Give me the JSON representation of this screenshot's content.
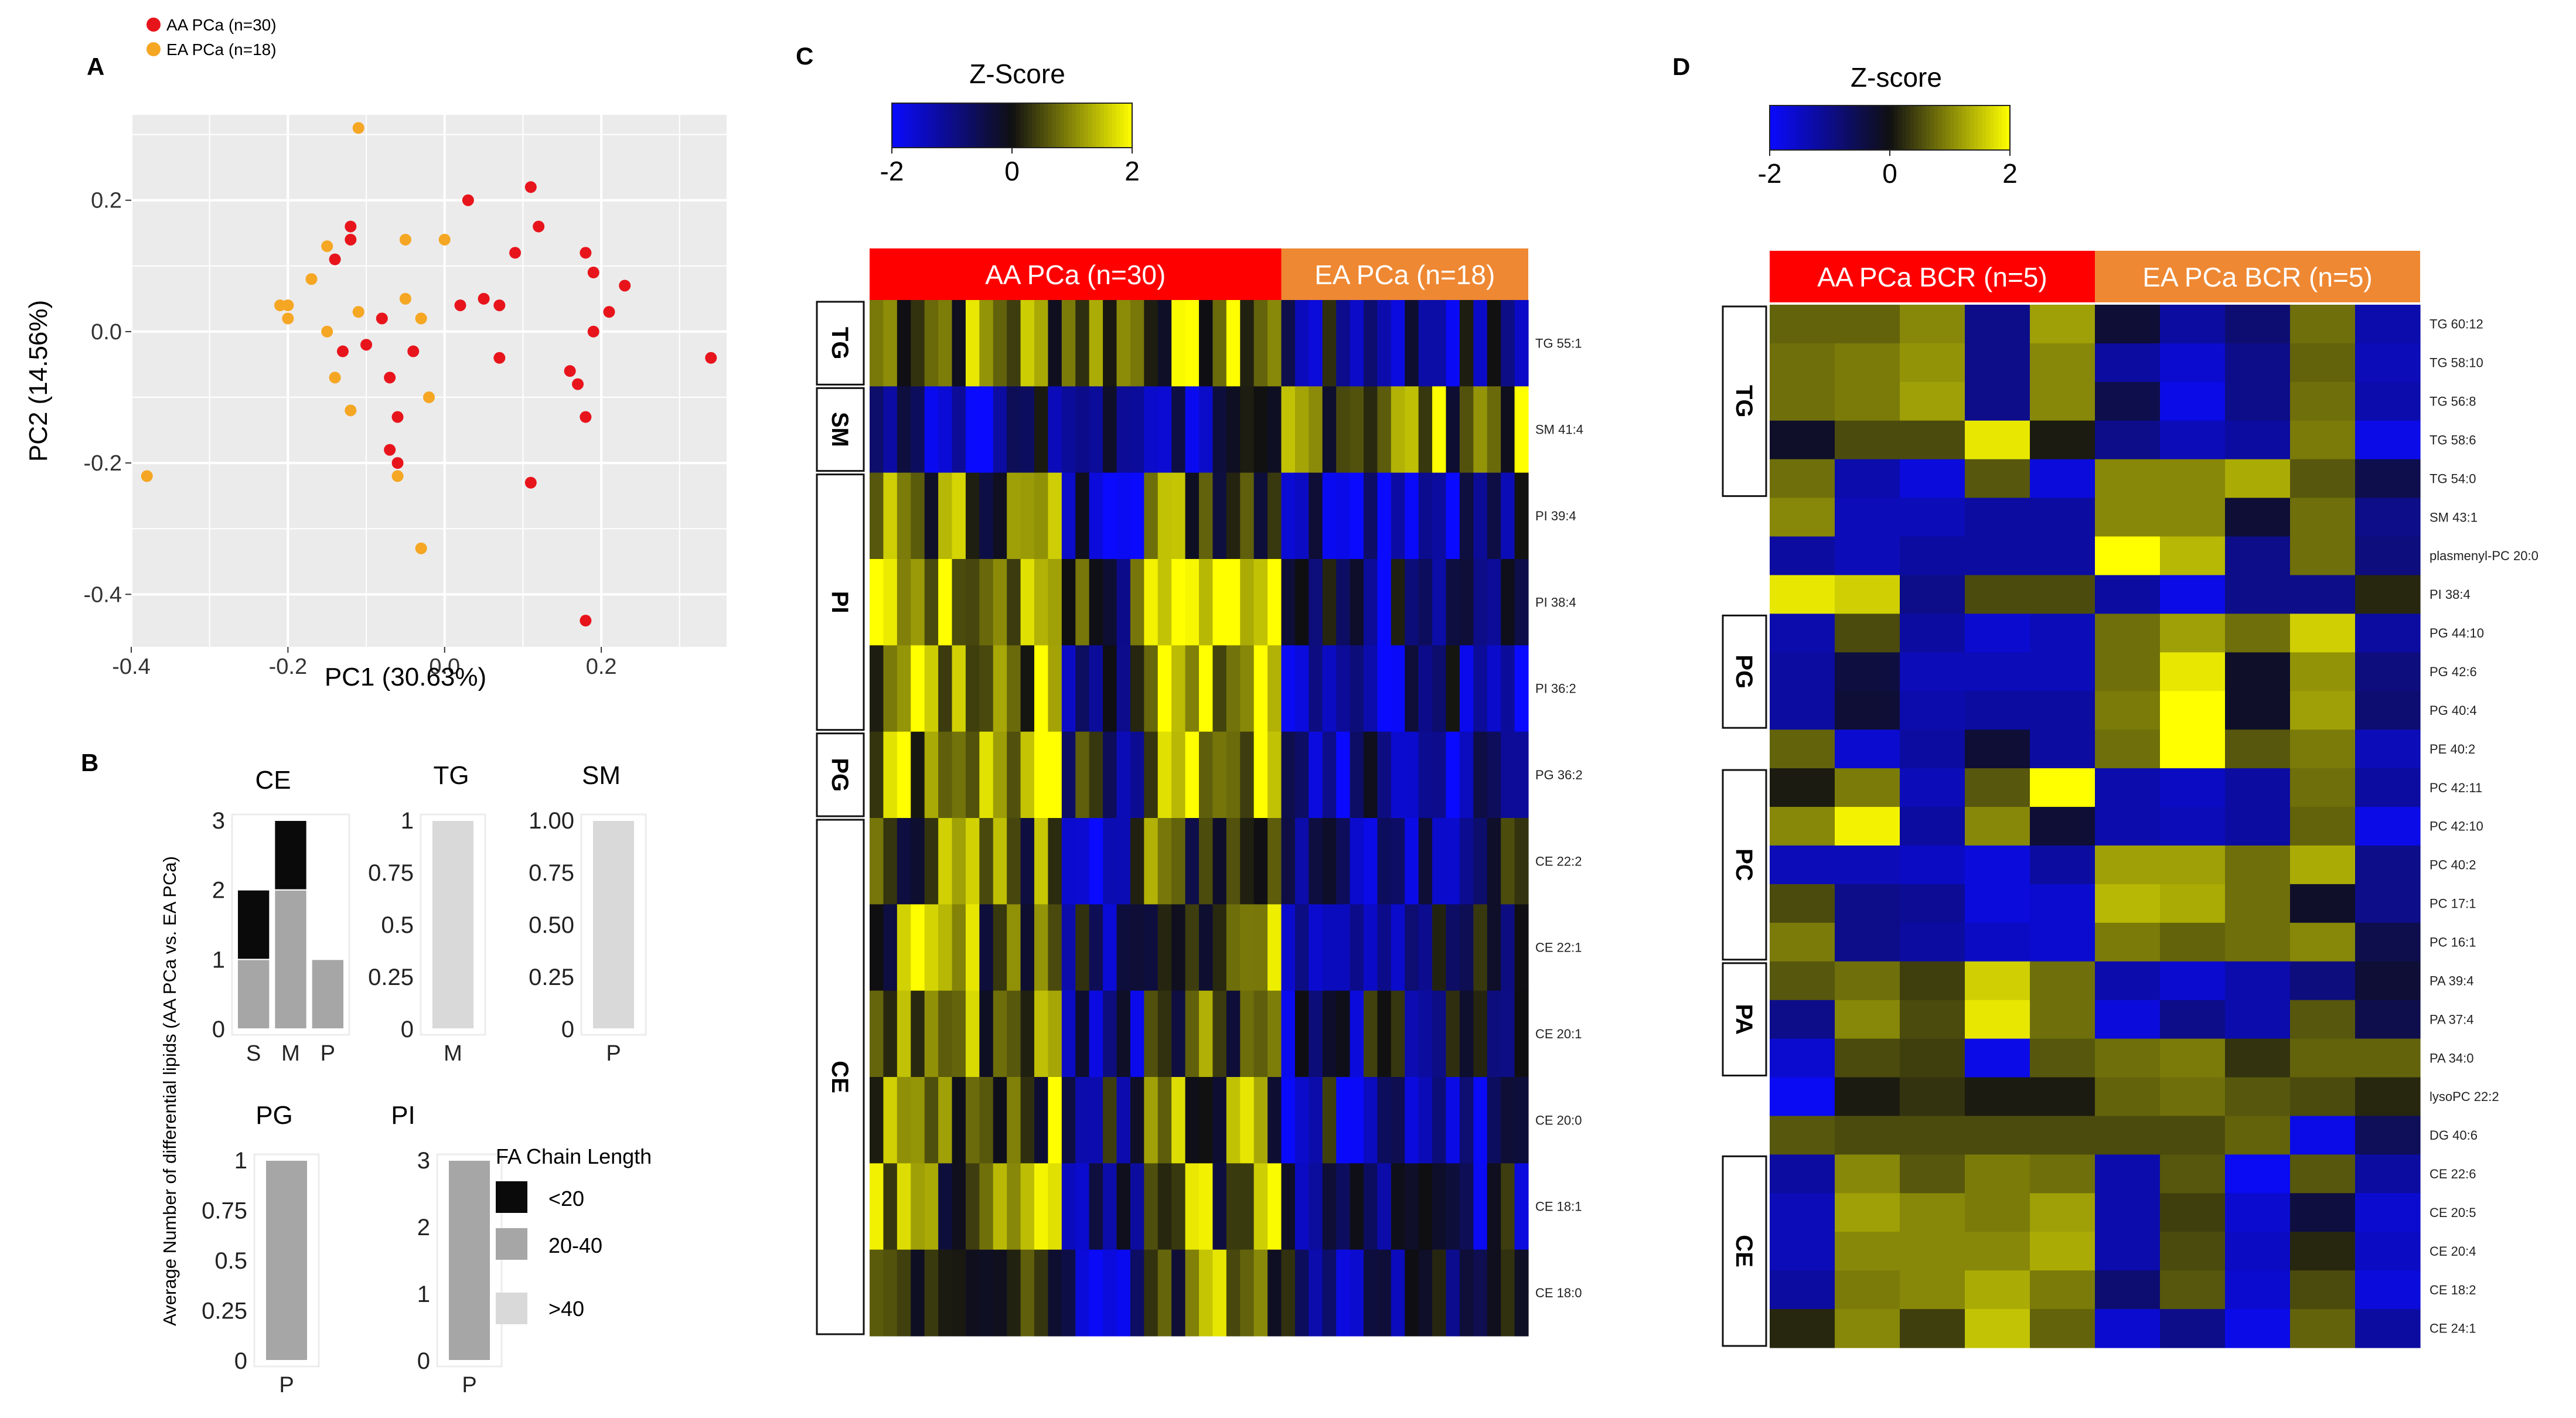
{
  "panels": {
    "a": "A",
    "b": "B",
    "c": "C",
    "d": "D"
  },
  "colors": {
    "aa": "#e8141c",
    "ea": "#f5a623",
    "grid_bg": "#ebebeb",
    "grid_line": "#ffffff",
    "bar_lt20": "#0a0a0a",
    "bar_20_40": "#a6a6a6",
    "bar_gt40": "#d9d9d9",
    "heat_low": "#0a0aff",
    "heat_mid": "#0f0f12",
    "heat_high": "#ffff00",
    "bar_aa": "#ff0000",
    "bar_ea": "#ee8833"
  },
  "chart_data": [
    {
      "id": "pca",
      "type": "scatter",
      "xlabel": "PC1 (30.63%)",
      "ylabel": "PC2 (14.56%)",
      "xlim": [
        -0.4,
        0.36
      ],
      "ylim": [
        -0.48,
        0.33
      ],
      "xticks": [
        {
          "v": -0.4,
          "label": "-0.4"
        },
        {
          "v": -0.2,
          "label": "-0.2"
        },
        {
          "v": 0.0,
          "label": "0.0"
        },
        {
          "v": 0.2,
          "label": "0.2"
        }
      ],
      "yticks": [
        {
          "v": 0.2,
          "label": "0.2"
        },
        {
          "v": 0.0,
          "label": "0.0"
        },
        {
          "v": -0.2,
          "label": "-0.2"
        },
        {
          "v": -0.4,
          "label": "-0.4"
        }
      ],
      "legend": [
        {
          "key": "aa",
          "label": "AA PCa (n=30)"
        },
        {
          "key": "ea",
          "label": "EA PCa (n=18)"
        }
      ],
      "series": [
        {
          "name": "AA PCa (n=30)",
          "color_key": "aa",
          "points": [
            [
              0.11,
              0.22
            ],
            [
              0.03,
              0.2
            ],
            [
              0.12,
              0.16
            ],
            [
              -0.12,
              0.16
            ],
            [
              -0.12,
              0.14
            ],
            [
              0.09,
              0.12
            ],
            [
              0.18,
              0.12
            ],
            [
              0.19,
              0.09
            ],
            [
              0.23,
              0.07
            ],
            [
              -0.14,
              0.11
            ],
            [
              -0.08,
              0.02
            ],
            [
              0.05,
              0.05
            ],
            [
              0.21,
              0.03
            ],
            [
              0.02,
              0.04
            ],
            [
              0.07,
              0.04
            ],
            [
              0.19,
              0.0
            ],
            [
              -0.13,
              -0.03
            ],
            [
              -0.1,
              -0.02
            ],
            [
              -0.04,
              -0.03
            ],
            [
              0.07,
              -0.04
            ],
            [
              0.16,
              -0.06
            ],
            [
              -0.07,
              -0.07
            ],
            [
              0.17,
              -0.08
            ],
            [
              0.34,
              -0.04
            ],
            [
              -0.06,
              -0.13
            ],
            [
              0.18,
              -0.13
            ],
            [
              -0.07,
              -0.18
            ],
            [
              0.11,
              -0.23
            ],
            [
              -0.06,
              -0.2
            ],
            [
              0.18,
              -0.44
            ]
          ]
        },
        {
          "name": "EA PCa (n=18)",
          "color_key": "ea",
          "points": [
            [
              -0.11,
              0.31
            ],
            [
              -0.15,
              0.13
            ],
            [
              -0.05,
              0.14
            ],
            [
              0.0,
              0.14
            ],
            [
              -0.17,
              0.08
            ],
            [
              -0.21,
              0.04
            ],
            [
              -0.2,
              0.04
            ],
            [
              -0.05,
              0.05
            ],
            [
              -0.2,
              0.02
            ],
            [
              -0.11,
              0.03
            ],
            [
              -0.03,
              0.02
            ],
            [
              -0.15,
              0.0
            ],
            [
              -0.14,
              -0.07
            ],
            [
              -0.12,
              -0.12
            ],
            [
              -0.02,
              -0.1
            ],
            [
              -0.06,
              -0.22
            ],
            [
              -0.38,
              -0.22
            ],
            [
              -0.03,
              -0.33
            ]
          ]
        }
      ]
    },
    {
      "id": "bars",
      "type": "bar",
      "ylabel": "Average Number of differential lipids (AA PCa vs. EA PCa)",
      "legend_title": "FA Chain Length",
      "legend": [
        {
          "key": "bar_lt20",
          "label": "<20"
        },
        {
          "key": "bar_20_40",
          "label": "20-40"
        },
        {
          "key": "bar_gt40",
          "label": ">40"
        }
      ],
      "subplots": [
        {
          "title": "CE",
          "categories": [
            "S",
            "M",
            "P"
          ],
          "ylim": [
            0,
            3
          ],
          "yticks": [
            {
              "v": 0,
              "label": "0"
            },
            {
              "v": 1,
              "label": "1"
            },
            {
              "v": 2,
              "label": "2"
            },
            {
              "v": 3,
              "label": "3"
            }
          ],
          "series": [
            {
              "name": "20-40",
              "color_key": "bar_20_40",
              "values": [
                1,
                2,
                1
              ]
            },
            {
              "name": "<20",
              "color_key": "bar_lt20",
              "values": [
                1,
                1,
                0
              ]
            }
          ]
        },
        {
          "title": "TG",
          "categories": [
            "M"
          ],
          "ylim": [
            0,
            1
          ],
          "yticks": [
            {
              "v": 0,
              "label": "0"
            },
            {
              "v": 0.25,
              "label": "0.25"
            },
            {
              "v": 0.5,
              "label": "0.5"
            },
            {
              "v": 0.75,
              "label": "0.75"
            },
            {
              "v": 1,
              "label": "1"
            }
          ],
          "series": [
            {
              "name": ">40",
              "color_key": "bar_gt40",
              "values": [
                1
              ]
            }
          ]
        },
        {
          "title": "SM",
          "categories": [
            "P"
          ],
          "ylim": [
            0,
            1
          ],
          "yticks": [
            {
              "v": 0,
              "label": "0"
            },
            {
              "v": 0.25,
              "label": "0.25"
            },
            {
              "v": 0.5,
              "label": "0.50"
            },
            {
              "v": 0.75,
              "label": "0.75"
            },
            {
              "v": 1,
              "label": "1.00"
            }
          ],
          "series": [
            {
              "name": ">40",
              "color_key": "bar_gt40",
              "values": [
                1
              ]
            }
          ]
        },
        {
          "title": "PG",
          "categories": [
            "P"
          ],
          "ylim": [
            0,
            1
          ],
          "yticks": [
            {
              "v": 0,
              "label": "0"
            },
            {
              "v": 0.25,
              "label": "0.25"
            },
            {
              "v": 0.5,
              "label": "0.5"
            },
            {
              "v": 0.75,
              "label": "0.75"
            },
            {
              "v": 1,
              "label": "1"
            }
          ],
          "series": [
            {
              "name": "20-40",
              "color_key": "bar_20_40",
              "values": [
                1
              ]
            }
          ]
        },
        {
          "title": "PI",
          "categories": [
            "P"
          ],
          "ylim": [
            0,
            3
          ],
          "yticks": [
            {
              "v": 0,
              "label": "0"
            },
            {
              "v": 1,
              "label": "1"
            },
            {
              "v": 2,
              "label": "2"
            },
            {
              "v": 3,
              "label": "3"
            }
          ],
          "series": [
            {
              "name": "20-40",
              "color_key": "bar_20_40",
              "values": [
                3
              ]
            }
          ]
        }
      ]
    },
    {
      "id": "heatmap_c",
      "type": "heatmap",
      "scale_title": "Z-Score",
      "scale_ticks": [
        {
          "v": -2,
          "label": "-2"
        },
        {
          "v": 0,
          "label": "0"
        },
        {
          "v": 2,
          "label": "2"
        }
      ],
      "groups": [
        {
          "label": "AA PCa (n=30)",
          "cols": 30,
          "color_key": "bar_aa"
        },
        {
          "label": "EA PCa (n=18)",
          "cols": 18,
          "color_key": "bar_ea"
        }
      ],
      "rows": [
        "TG 55:1",
        "SM 41:4",
        "PI 39:4",
        "PI 38:4",
        "PI 36:2",
        "PG 36:2",
        "CE 22:2",
        "CE 22:1",
        "CE 20:1",
        "CE 20:0",
        "CE 18:1",
        "CE 18:0"
      ],
      "row_groups": [
        {
          "label": "TG",
          "rows": 1
        },
        {
          "label": "SM",
          "rows": 1
        },
        {
          "label": "PI",
          "rows": 3
        },
        {
          "label": "PG",
          "rows": 1
        },
        {
          "label": "CE",
          "rows": 6
        }
      ],
      "values": []
    },
    {
      "id": "heatmap_d",
      "type": "heatmap",
      "scale_title": "Z-score",
      "scale_ticks": [
        {
          "v": -2,
          "label": "-2"
        },
        {
          "v": 0,
          "label": "0"
        },
        {
          "v": 2,
          "label": "2"
        }
      ],
      "groups": [
        {
          "label": "AA PCa BCR (n=5)",
          "cols": 5,
          "color_key": "bar_aa"
        },
        {
          "label": "EA PCa BCR (n=5)",
          "cols": 5,
          "color_key": "bar_ea"
        }
      ],
      "rows": [
        "TG 60:12",
        "TG 58:10",
        "TG 56:8",
        "TG 58:6",
        "TG 54:0",
        "SM 43:1",
        "plasmenyl-PC 20:0",
        "PI 38:4",
        "PG 44:10",
        "PG 42:6",
        "PG 40:4",
        "PE 40:2",
        "PC 42:11",
        "PC 42:10",
        "PC 40:2",
        "PC 17:1",
        "PC 16:1",
        "PA 39:4",
        "PA 37:4",
        "PA 34:0",
        "lysoPC 22:2",
        "DG 40:6",
        "CE 22:6",
        "CE 20:5",
        "CE 20:4",
        "CE 18:2",
        "CE 24:1"
      ],
      "row_groups": [
        {
          "label": "TG",
          "start": 0,
          "rows": 5
        },
        {
          "label": "PG",
          "start": 8,
          "rows": 3
        },
        {
          "label": "PC",
          "start": 12,
          "rows": 5
        },
        {
          "label": "PA",
          "start": 17,
          "rows": 3
        },
        {
          "label": "CE",
          "start": 22,
          "rows": 5
        }
      ],
      "values": [
        [
          0.7,
          0.7,
          1.0,
          -1.0,
          1.2,
          -0.3,
          -1.2,
          -0.8,
          0.8,
          -1.3
        ],
        [
          0.8,
          0.9,
          1.1,
          -1.0,
          1.0,
          -1.2,
          -1.6,
          -1.0,
          0.7,
          -1.4
        ],
        [
          0.8,
          0.9,
          1.2,
          -1.0,
          1.0,
          -0.5,
          -1.8,
          -1.0,
          0.8,
          -1.3
        ],
        [
          -0.2,
          0.5,
          0.5,
          1.8,
          0.1,
          -1.0,
          -1.4,
          -1.2,
          0.9,
          -1.8
        ],
        [
          0.8,
          -1.3,
          -1.7,
          0.6,
          -1.7,
          1.0,
          1.0,
          1.3,
          0.6,
          -0.5
        ],
        [
          1.0,
          -1.4,
          -1.4,
          -1.2,
          -1.2,
          1.0,
          1.0,
          -0.3,
          0.8,
          -1.0
        ],
        [
          -1.2,
          -1.4,
          -1.2,
          -1.2,
          -1.2,
          2.0,
          1.4,
          -1.0,
          0.8,
          -0.9
        ],
        [
          1.8,
          1.6,
          -1.0,
          0.5,
          0.5,
          -1.2,
          -1.8,
          -1.0,
          -1.0,
          0.2
        ],
        [
          -1.3,
          0.5,
          -1.2,
          -1.6,
          -1.4,
          0.8,
          1.2,
          0.8,
          1.6,
          -1.2
        ],
        [
          -1.2,
          -0.4,
          -1.4,
          -1.4,
          -1.4,
          0.8,
          1.8,
          -0.2,
          1.1,
          -0.9
        ],
        [
          -1.2,
          -0.3,
          -1.3,
          -1.2,
          -1.2,
          0.9,
          2.0,
          -0.2,
          1.2,
          -0.8
        ],
        [
          0.7,
          -1.6,
          -1.2,
          -0.3,
          -1.2,
          0.8,
          2.0,
          0.6,
          0.9,
          -1.4
        ],
        [
          0.1,
          0.9,
          -1.4,
          0.6,
          2.0,
          -1.3,
          -1.5,
          -1.2,
          0.8,
          -1.2
        ],
        [
          1.0,
          1.9,
          -1.2,
          1.0,
          -0.3,
          -1.3,
          -1.4,
          -1.2,
          0.7,
          -1.8
        ],
        [
          -1.4,
          -1.4,
          -1.5,
          -1.7,
          -1.2,
          1.2,
          1.2,
          0.8,
          1.3,
          -1.0
        ],
        [
          0.5,
          -1.0,
          -1.1,
          -1.7,
          -1.6,
          1.4,
          1.3,
          0.8,
          -0.2,
          -1.0
        ],
        [
          0.9,
          -1.0,
          -1.2,
          -1.5,
          -1.6,
          0.9,
          0.7,
          0.8,
          1.0,
          -0.5
        ],
        [
          0.6,
          0.8,
          0.4,
          1.6,
          0.8,
          -1.3,
          -1.6,
          -1.3,
          -0.9,
          -0.3
        ],
        [
          -1.0,
          1.0,
          0.5,
          1.8,
          0.8,
          -1.7,
          -1.0,
          -1.3,
          0.6,
          -0.5
        ],
        [
          -1.6,
          0.5,
          0.4,
          -1.8,
          0.6,
          0.8,
          0.9,
          0.3,
          0.7,
          0.7
        ],
        [
          -1.9,
          0.1,
          0.3,
          0.1,
          0.1,
          0.7,
          0.8,
          0.6,
          0.5,
          0.2
        ],
        [
          0.6,
          0.5,
          0.5,
          0.5,
          0.5,
          0.5,
          0.5,
          0.7,
          -1.8,
          -0.6
        ],
        [
          -1.2,
          1.0,
          0.6,
          0.9,
          0.8,
          -1.3,
          0.6,
          -1.9,
          0.6,
          -1.2
        ],
        [
          -1.4,
          1.2,
          1.0,
          0.9,
          1.2,
          -1.3,
          0.4,
          -1.6,
          -0.4,
          -1.6
        ],
        [
          -1.4,
          1.0,
          1.0,
          1.0,
          1.3,
          -1.3,
          0.5,
          -1.5,
          0.2,
          -1.5
        ],
        [
          -1.2,
          0.9,
          1.0,
          1.3,
          0.9,
          -0.8,
          0.6,
          -1.6,
          0.5,
          -1.7
        ],
        [
          0.2,
          1.0,
          0.4,
          1.5,
          0.7,
          -1.6,
          -1.0,
          -1.8,
          0.7,
          -1.2
        ]
      ]
    }
  ]
}
